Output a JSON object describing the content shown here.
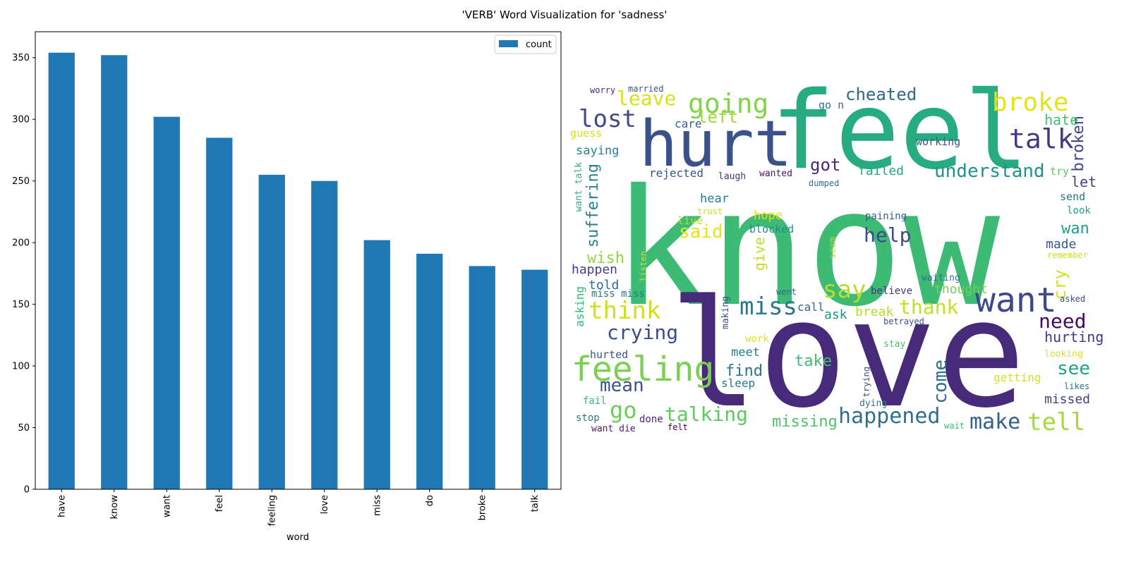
{
  "figure_title": "'VERB' Word Visualization for 'sadness'",
  "chart_data": [
    {
      "type": "bar",
      "title": "",
      "xlabel": "word",
      "ylabel": "",
      "categories": [
        "have",
        "know",
        "want",
        "feel",
        "feeling",
        "love",
        "miss",
        "do",
        "broke",
        "talk"
      ],
      "series": [
        {
          "name": "count",
          "values": [
            354,
            352,
            302,
            285,
            255,
            250,
            202,
            191,
            181,
            178
          ]
        }
      ],
      "ylim": [
        0,
        371
      ],
      "yticks": [
        0,
        50,
        100,
        150,
        200,
        250,
        300,
        350
      ],
      "bar_color": "#1f77b4",
      "legend": "top-right",
      "grid": false
    },
    {
      "type": "wordcloud",
      "words": [
        {
          "text": "know",
          "color": "#3dbb74"
        },
        {
          "text": "love",
          "color": "#472a7a"
        },
        {
          "text": "feel",
          "color": "#26ac80"
        },
        {
          "text": "hurt",
          "color": "#3b518b"
        },
        {
          "text": "want",
          "color": "#3f4889"
        },
        {
          "text": "feeling",
          "color": "#7ad151"
        },
        {
          "text": "tell",
          "color": "#a5db36"
        },
        {
          "text": "talk",
          "color": "#443983"
        },
        {
          "text": "broke",
          "color": "#e5e419"
        },
        {
          "text": "going",
          "color": "#84d44b"
        },
        {
          "text": "lost",
          "color": "#3e4a89"
        },
        {
          "text": "say",
          "color": "#b8de29"
        },
        {
          "text": "miss",
          "color": "#2a788e"
        },
        {
          "text": "think",
          "color": "#d0e11c"
        },
        {
          "text": "happened",
          "color": "#2c728e"
        },
        {
          "text": "make",
          "color": "#33628d"
        },
        {
          "text": "crying",
          "color": "#3e4c8a"
        },
        {
          "text": "leave",
          "color": "#d8e219"
        },
        {
          "text": "talking",
          "color": "#5ec962"
        },
        {
          "text": "go",
          "color": "#6ccd5a"
        },
        {
          "text": "thank",
          "color": "#c2df23"
        },
        {
          "text": "need",
          "color": "#46085c"
        },
        {
          "text": "mean",
          "color": "#3b528b"
        },
        {
          "text": "understand",
          "color": "#21918c"
        },
        {
          "text": "see",
          "color": "#20a386"
        },
        {
          "text": "cheated",
          "color": "#31688e"
        },
        {
          "text": "help",
          "color": "#3e4989"
        },
        {
          "text": "missing",
          "color": "#50c46a"
        },
        {
          "text": "got",
          "color": "#482878"
        },
        {
          "text": "hurting",
          "color": "#443a83"
        },
        {
          "text": "said",
          "color": "#e4e419"
        },
        {
          "text": "suffering",
          "color": "#26828e"
        },
        {
          "text": "come",
          "color": "#2d708e"
        },
        {
          "text": "broken",
          "color": "#414487"
        },
        {
          "text": "left",
          "color": "#9fda3a"
        },
        {
          "text": "cry",
          "color": "#d2e21b"
        },
        {
          "text": "wish",
          "color": "#90d743"
        },
        {
          "text": "take",
          "color": "#40bd72"
        },
        {
          "text": "wan",
          "color": "#1f9e89"
        },
        {
          "text": "hate",
          "color": "#44bf70"
        },
        {
          "text": "find",
          "color": "#2c738e"
        },
        {
          "text": "missed",
          "color": "#424086"
        },
        {
          "text": "happen",
          "color": "#433e85"
        },
        {
          "text": "failed",
          "color": "#22a785"
        },
        {
          "text": "let",
          "color": "#414487"
        },
        {
          "text": "give",
          "color": "#bddf26"
        },
        {
          "text": "told",
          "color": "#2e6e8e"
        },
        {
          "text": "ask",
          "color": "#21918c"
        },
        {
          "text": "break",
          "color": "#b5de2b"
        },
        {
          "text": "thought",
          "color": "#75d054"
        },
        {
          "text": "made",
          "color": "#39568c"
        },
        {
          "text": "saying",
          "color": "#25858e"
        },
        {
          "text": "hope",
          "color": "#dde318"
        },
        {
          "text": "hear",
          "color": "#287c8e"
        },
        {
          "text": "meet",
          "color": "#277e8e"
        },
        {
          "text": "getting",
          "color": "#d5e21a"
        },
        {
          "text": "call",
          "color": "#31688e"
        },
        {
          "text": "sleep",
          "color": "#2a768e"
        },
        {
          "text": "asking",
          "color": "#35b779"
        },
        {
          "text": "send",
          "color": "#2c728e"
        },
        {
          "text": "go n",
          "color": "#2f6c8e"
        },
        {
          "text": "care",
          "color": "#355f8d"
        },
        {
          "text": "rejected",
          "color": "#3a548c"
        },
        {
          "text": "guess",
          "color": "#d8e219"
        },
        {
          "text": "working",
          "color": "#3b528b"
        },
        {
          "text": "blocked",
          "color": "#23898e"
        },
        {
          "text": "live",
          "color": "#bade28"
        },
        {
          "text": "hurted",
          "color": "#39558c"
        },
        {
          "text": "miss miss",
          "color": "#2a788e"
        },
        {
          "text": "want talk",
          "color": "#2ab07f"
        },
        {
          "text": "believe",
          "color": "#46337f"
        },
        {
          "text": "try",
          "color": "#5ec962"
        },
        {
          "text": "look",
          "color": "#1fa187"
        },
        {
          "text": "fail",
          "color": "#37b878"
        },
        {
          "text": "stop",
          "color": "#2a788e"
        },
        {
          "text": "making",
          "color": "#3c508b"
        },
        {
          "text": "dying",
          "color": "#287d8e"
        },
        {
          "text": "done",
          "color": "#482475"
        },
        {
          "text": "want die",
          "color": "#481b6d"
        },
        {
          "text": "felt",
          "color": "#440154"
        },
        {
          "text": "seem",
          "color": "#addc30"
        },
        {
          "text": "laugh",
          "color": "#46327e"
        },
        {
          "text": "wanted",
          "color": "#471365"
        },
        {
          "text": "dumped",
          "color": "#2d708e"
        },
        {
          "text": "trust",
          "color": "#cde11d"
        },
        {
          "text": "paining",
          "color": "#355f8d"
        },
        {
          "text": "listen",
          "color": "#d2e21b"
        },
        {
          "text": "remember",
          "color": "#d0e11c"
        },
        {
          "text": "waiting",
          "color": "#2c728e"
        },
        {
          "text": "went",
          "color": "#33638d"
        },
        {
          "text": "asked",
          "color": "#3e4a89"
        },
        {
          "text": "betrayed",
          "color": "#3b528b"
        },
        {
          "text": "work",
          "color": "#e2e418"
        },
        {
          "text": "stay",
          "color": "#4ac16d"
        },
        {
          "text": "looking",
          "color": "#d8e219"
        },
        {
          "text": "trying",
          "color": "#3d4d8a"
        },
        {
          "text": "likes",
          "color": "#2c728e"
        },
        {
          "text": "wait",
          "color": "#3cbc75"
        },
        {
          "text": "worry",
          "color": "#482677"
        },
        {
          "text": "married",
          "color": "#3a548c"
        }
      ]
    }
  ]
}
